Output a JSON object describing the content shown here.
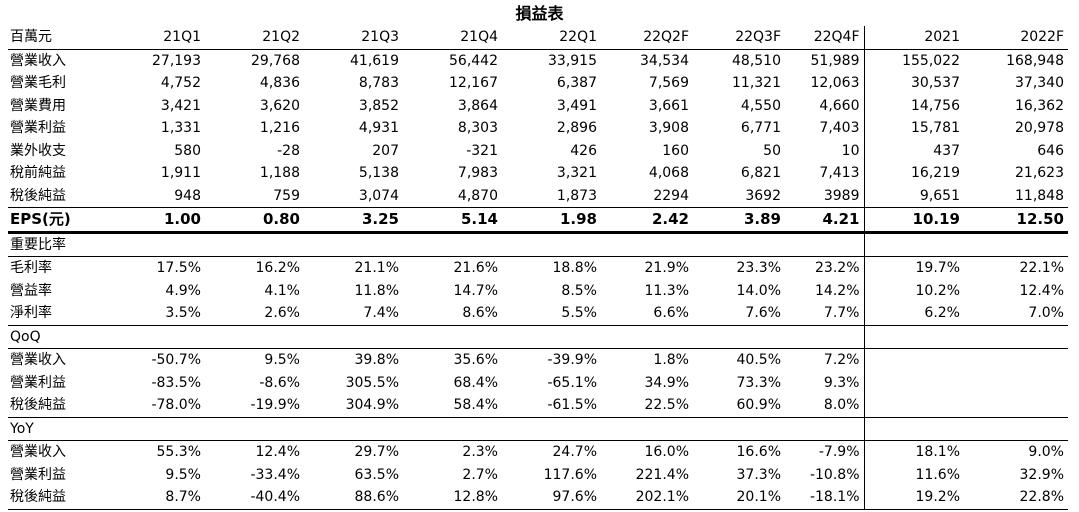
{
  "title": "損益表",
  "header": {
    "unit": "百萬元",
    "columns": [
      "21Q1",
      "21Q2",
      "21Q3",
      "21Q4",
      "22Q1",
      "22Q2F",
      "22Q3F",
      "22Q4F",
      "2021",
      "2022F"
    ]
  },
  "income_rows": [
    {
      "label": "營業收入",
      "values": [
        "27,193",
        "29,768",
        "41,619",
        "56,442",
        "33,915",
        "34,534",
        "48,510",
        "51,989",
        "155,022",
        "168,948"
      ]
    },
    {
      "label": "營業毛利",
      "values": [
        "4,752",
        "4,836",
        "8,783",
        "12,167",
        "6,387",
        "7,569",
        "11,321",
        "12,063",
        "30,537",
        "37,340"
      ]
    },
    {
      "label": "營業費用",
      "values": [
        "3,421",
        "3,620",
        "3,852",
        "3,864",
        "3,491",
        "3,661",
        "4,550",
        "4,660",
        "14,756",
        "16,362"
      ]
    },
    {
      "label": "營業利益",
      "values": [
        "1,331",
        "1,216",
        "4,931",
        "8,303",
        "2,896",
        "3,908",
        "6,771",
        "7,403",
        "15,781",
        "20,978"
      ]
    },
    {
      "label": "業外收支",
      "values": [
        "580",
        "-28",
        "207",
        "-321",
        "426",
        "160",
        "50",
        "10",
        "437",
        "646"
      ]
    },
    {
      "label": "稅前純益",
      "values": [
        "1,911",
        "1,188",
        "5,138",
        "7,983",
        "3,321",
        "4,068",
        "6,821",
        "7,413",
        "16,219",
        "21,623"
      ]
    },
    {
      "label": "稅後純益",
      "values": [
        "948",
        "759",
        "3,074",
        "4,870",
        "1,873",
        "2294",
        "3692",
        "3989",
        "9,651",
        "11,848"
      ]
    }
  ],
  "eps": {
    "label": "EPS(元)",
    "values": [
      "1.00",
      "0.80",
      "3.25",
      "5.14",
      "1.98",
      "2.42",
      "3.89",
      "4.21",
      "10.19",
      "12.50"
    ]
  },
  "ratio_section": {
    "title": "重要比率",
    "rows": [
      {
        "label": "毛利率",
        "values": [
          "17.5%",
          "16.2%",
          "21.1%",
          "21.6%",
          "18.8%",
          "21.9%",
          "23.3%",
          "23.2%",
          "19.7%",
          "22.1%"
        ]
      },
      {
        "label": "營益率",
        "values": [
          "4.9%",
          "4.1%",
          "11.8%",
          "14.7%",
          "8.5%",
          "11.3%",
          "14.0%",
          "14.2%",
          "10.2%",
          "12.4%"
        ]
      },
      {
        "label": "淨利率",
        "values": [
          "3.5%",
          "2.6%",
          "7.4%",
          "8.6%",
          "5.5%",
          "6.6%",
          "7.6%",
          "7.7%",
          "6.2%",
          "7.0%"
        ]
      }
    ]
  },
  "qoq_section": {
    "title": "QoQ",
    "rows": [
      {
        "label": "營業收入",
        "values": [
          "-50.7%",
          "9.5%",
          "39.8%",
          "35.6%",
          "-39.9%",
          "1.8%",
          "40.5%",
          "7.2%",
          "",
          ""
        ]
      },
      {
        "label": "營業利益",
        "values": [
          "-83.5%",
          "-8.6%",
          "305.5%",
          "68.4%",
          "-65.1%",
          "34.9%",
          "73.3%",
          "9.3%",
          "",
          ""
        ]
      },
      {
        "label": "稅後純益",
        "values": [
          "-78.0%",
          "-19.9%",
          "304.9%",
          "58.4%",
          "-61.5%",
          "22.5%",
          "60.9%",
          "8.0%",
          "",
          ""
        ]
      }
    ]
  },
  "yoy_section": {
    "title": "YoY",
    "rows": [
      {
        "label": "營業收入",
        "values": [
          "55.3%",
          "12.4%",
          "29.7%",
          "2.3%",
          "24.7%",
          "16.0%",
          "16.6%",
          "-7.9%",
          "18.1%",
          "9.0%"
        ]
      },
      {
        "label": "營業利益",
        "values": [
          "9.5%",
          "-33.4%",
          "63.5%",
          "2.7%",
          "117.6%",
          "221.4%",
          "37.3%",
          "-10.8%",
          "11.6%",
          "32.9%"
        ]
      },
      {
        "label": "稅後純益",
        "values": [
          "8.7%",
          "-40.4%",
          "88.6%",
          "12.8%",
          "97.6%",
          "202.1%",
          "20.1%",
          "-18.1%",
          "19.2%",
          "22.8%"
        ]
      }
    ]
  }
}
